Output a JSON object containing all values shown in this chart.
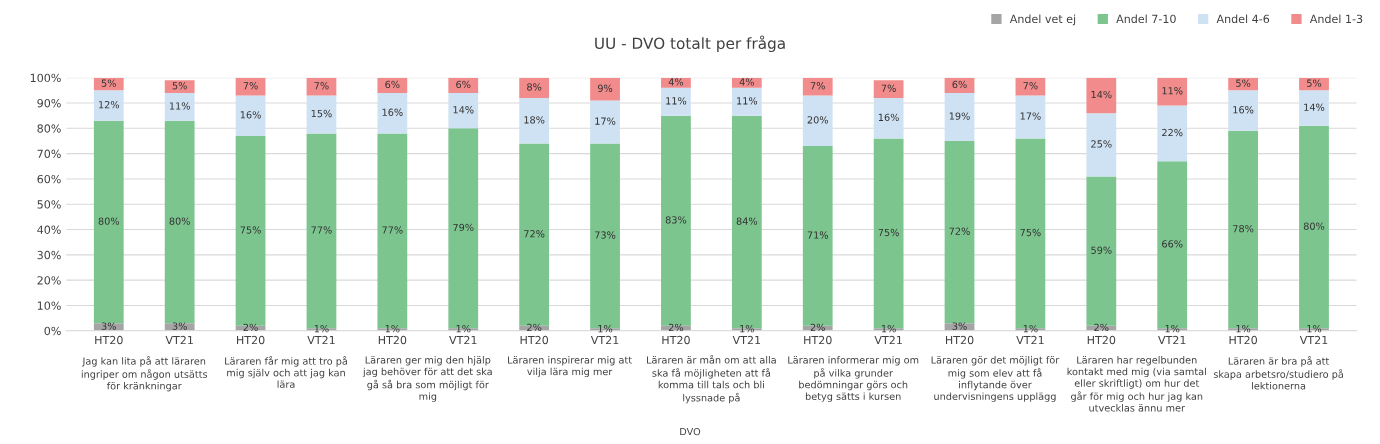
{
  "chart_data": {
    "type": "bar",
    "stacked": true,
    "title": "UU - DVO totalt per fråga",
    "categories": [
      "HT20",
      "VT21",
      "HT20",
      "VT21",
      "HT20",
      "VT21",
      "HT20",
      "VT21",
      "HT20",
      "VT21",
      "HT20",
      "VT21",
      "HT20",
      "VT21",
      "HT20",
      "VT21",
      "HT20",
      "VT21"
    ],
    "series": [
      {
        "name": "Andel vet ej",
        "color": "#a5a5a5",
        "values": [
          3,
          3,
          2,
          1,
          1,
          1,
          2,
          1,
          2,
          1,
          2,
          1,
          3,
          1,
          2,
          1,
          1,
          1
        ],
        "value_labels": [
          "3%",
          "3%",
          "2%",
          "1%",
          "1%",
          "1%",
          "2%",
          "1%",
          "2%",
          "1%",
          "2%",
          "1%",
          "3%",
          "1%",
          "2%",
          "1%",
          "1%",
          "1%"
        ]
      },
      {
        "name": "Andel 7-10",
        "color": "#7dc58f",
        "values": [
          80,
          80,
          75,
          77,
          77,
          79,
          72,
          73,
          83,
          84,
          71,
          75,
          72,
          75,
          59,
          66,
          78,
          80
        ],
        "value_labels": [
          "80%",
          "80%",
          "75%",
          "77%",
          "77%",
          "79%",
          "72%",
          "73%",
          "83%",
          "84%",
          "71%",
          "75%",
          "72%",
          "75%",
          "59%",
          "66%",
          "78%",
          "80%"
        ]
      },
      {
        "name": "Andel 4-6",
        "color": "#cfe2f3",
        "values": [
          12,
          11,
          16,
          15,
          16,
          14,
          18,
          17,
          11,
          11,
          20,
          16,
          19,
          17,
          25,
          22,
          16,
          14
        ],
        "value_labels": [
          "12%",
          "11%",
          "16%",
          "15%",
          "16%",
          "14%",
          "18%",
          "17%",
          "11%",
          "11%",
          "20%",
          "16%",
          "19%",
          "17%",
          "25%",
          "22%",
          "16%",
          "14%"
        ]
      },
      {
        "name": "Andel 1-3",
        "color": "#f28b8b",
        "values": [
          5,
          5,
          7,
          7,
          6,
          6,
          8,
          9,
          4,
          4,
          7,
          7,
          6,
          7,
          14,
          11,
          5,
          5
        ],
        "value_labels": [
          "5%",
          "5%",
          "7%",
          "7%",
          "6%",
          "6%",
          "8%",
          "9%",
          "4%",
          "4%",
          "7%",
          "7%",
          "6%",
          "7%",
          "14%",
          "11%",
          "5%",
          "5%"
        ]
      }
    ],
    "ylim": [
      0,
      100
    ],
    "yticks": [
      {
        "value": 0,
        "label": "0%"
      },
      {
        "value": 10,
        "label": "10%"
      },
      {
        "value": 20,
        "label": "20%"
      },
      {
        "value": 30,
        "label": "30%"
      },
      {
        "value": 40,
        "label": "40%"
      },
      {
        "value": 50,
        "label": "50%"
      },
      {
        "value": 60,
        "label": "60%"
      },
      {
        "value": 70,
        "label": "70%"
      },
      {
        "value": 80,
        "label": "80%"
      },
      {
        "value": 90,
        "label": "90%"
      },
      {
        "value": 100,
        "label": "100%"
      }
    ],
    "grid": "y",
    "legend": "top right",
    "annotations": [
      "Jag kan lita på att läraren\ningriper om någon utsätts\nför kränkningar",
      "Läraren får mig att tro på\nmig själv och att jag kan\nlära",
      "Läraren ger mig den hjälp\njag behöver för att det ska\ngå så bra som möjligt för\nmig",
      "Läraren inspirerar mig att\nvilja lära mig mer",
      "Läraren är mån om att alla\nska få möjligheten att få\nkomma till tals och bli\nlyssnade på",
      "Läraren informerar mig om\npå vilka grunder\nbedömningar görs och\nbetyg sätts i kursen",
      "Läraren gör det möjligt för\nmig som elev att få\ninflytande över\nundervisningens upplägg",
      "Läraren har regelbunden\nkontakt med mig (via samtal\neller skriftligt) om hur det\ngår för mig och hur jag kan\nutvecklas ännu mer",
      "Läraren är bra på att\nskapa arbetsro/studiero på\nlektionerna",
      "DVO"
    ]
  }
}
